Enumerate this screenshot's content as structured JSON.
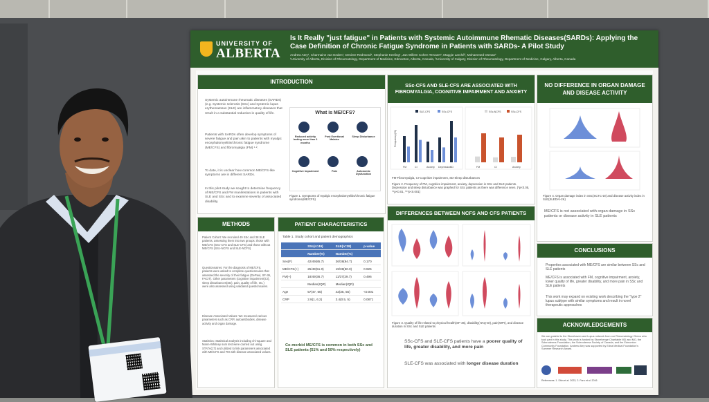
{
  "poster": {
    "university_line1": "UNIVERSITY OF",
    "university_line2": "ALBERTA",
    "title": "Is It Really \"just fatigue\" in Patients with Systemic Autoimmune Rhematic Diseases(SARDs): Applying the Case Definition of Chronic Fatigue Syndrome in Patients with SARDs- A Pilot Study",
    "authors": "Andrew Atey¹, Charmaine van Eeden¹, Desiree Redmond¹, Stephanie Keeling¹, Jan Willem Cohen Tervaert¹, Maggie Larché², Mohammed Osman¹",
    "affiliations": "¹University of Alberta, Division of Rheumatology, Department of Medicine, Edmonton, Alberta, Canada, ²University of Calgary, Division of Rheumatology, Department of Medicine, Calgary, Alberta, Canada",
    "intro": {
      "heading": "INTRODUCTION",
      "p1": "Systemic autoimmune rheumatic diseases (SARDs) (e.g. Systemic sclerosis (SSc) and systemic lupus erythematosus (SLE) are inflammatory diseases that result in a substantial reduction in quality of life.",
      "p2": "Patients with SARDs often develop symptoms of severe fatigue and pain akin to patients with myalgic encephalomyelitis/chronic fatigue syndrome (ME/CFS) and fibromyalgia (FM) ¹·².",
      "p3": "To date, it is unclear how common ME/CFS-like symptoms are in different SARDs.",
      "p4": "In this pilot study we sought to determine frequency of ME/CFS and FM manifestations in patients with SLE and SSc and to examine severity of associated disability.",
      "figure_title": "What is ME/CFS?",
      "figure_items": [
        "Reduced activity lasting more than 6 months",
        "Post Exertional Malaise",
        "Sleep Disturbance",
        "Cognitive Impairment",
        "Pain",
        "Autonomic Dysfunction"
      ],
      "caption": "Figure 1. Symptoms of myalgic encephalomyelitis/chronic fatigue syndrome(ME/CFS)"
    },
    "assoc": {
      "heading": "SSc-CFS AND SLE-CFS ARE ASSOCIATED WITH FIBROMYALGIA, COGNITIVE IMPAIRMENT AND ANXIETY",
      "legend_left": [
        "SLE-CFS",
        "SSc-CFS"
      ],
      "legend_right": [
        "SSc-NCFS",
        "SSc-CFS"
      ],
      "xlabels_left": [
        "FM",
        "CI",
        "Anxiety",
        "Depression",
        "SD"
      ],
      "xlabels_right": [
        "FM",
        "CI",
        "Anxiety"
      ],
      "ylabel": "Frequency(%)",
      "abbrev": "FM-Fibromyalgia, CI-Cognitive impairment, SD-Sleep disturbances",
      "caption": "Figure 2. Frequency of FM, cognitive impairment, anxiety, depression in SSc and SLE patients. Depression and sleep disturbance was graphed for SSc patients as there was difference seen. (*p<0.05, **p<0.01, ***p<0.001)"
    },
    "organ": {
      "heading": "NO DIFFERENCE IN ORGAN DAMAGE AND DISEASE ACTIVITY",
      "caption": "Figure 4. Organ damage index in SSc(SCTC-DI) and disease activity index in SLE(SLEDAI-2K)",
      "bullet": "ME/CFS is not associated with organ damage in SSc patients or disease activity in SLE patients"
    },
    "methods": {
      "heading": "METHODS",
      "cohort": "Patient Cohort: We recruited 49 SSc and 38 SLE patients, assessing them into two groups: those with ME/CFS (SSc-CFS and SLE-CFS) and those without ME/CFS (SSc-NCFS and SLE-NCFS)",
      "questionnaires": "Questionnaires: For the diagnosis of ME/CFS, patients were asked to complete questionnaires that assessed the severity of their fatigue (DePaul, SF-36, FACIT). Other parameters (cognitive impairment(CI), sleep disturbances(SD), pain, quality of life, etc.) were also assessed using validated questionnaires.",
      "disease": "Disease Associated Values: We measured various parameters such as CRP, autoantibodies, disease activity and organ damage.",
      "stats": "Statistics: Statistical analysis including chi-square and Mann-Whitney sum test were carried out using STATA(17) and utilized to link parameters associated with ME/CFS and FM with disease associated values."
    },
    "patients": {
      "heading": "PATIENT CHARACTERISTICS",
      "table_title": "Table 1. Study cohort and patient demographics",
      "columns": [
        "",
        "SSc(n=49)",
        "SLE(n=38)",
        "p-value"
      ],
      "subheader": [
        "",
        "Number(%)",
        "Number(%)",
        ""
      ],
      "rows": [
        [
          "Sex(F)",
          "42/49(85.7)",
          "36/38(94.7)",
          "0.170"
        ],
        [
          "ME/CFS(+)",
          "25/49(51.0)",
          "19/38(50.0)",
          "0.925"
        ],
        [
          "FM(+)",
          "18/49(36.7)",
          "11/37(29.7)",
          "0.496"
        ]
      ],
      "subheader2": [
        "",
        "Median(IQR)",
        "Median(IQR)",
        ""
      ],
      "rows2": [
        [
          "Age",
          "57(47, 65)",
          "42(35, 55)",
          "<0.001"
        ],
        [
          "CRP",
          "2.9(1, 6.2)",
          "3.4(0.5, 5)",
          "0.0871"
        ]
      ],
      "bullet": "Co-morbid ME/CFS is common in both SSc and SLE patients (51% and 50% respectively)"
    },
    "differences": {
      "heading": "DIFFERENCES BETWEEN NCFS AND CFS PATIENTS",
      "caption": "Figure 3. Quality of life related to physical health(SF-36), disability(HAQ-DI), pain(WPI), and disease duration in SSc and SLE patients",
      "bullet1_a": "SSc-CFS and SLE-CFS patients have a ",
      "bullet1_b": "poorer quality of life, greater disability, and more pain",
      "bullet2_a": "SLE-CFS was associated with ",
      "bullet2_b": "longer disease duration"
    },
    "conclusions": {
      "heading": "CONCLUSIONS",
      "b1": "Properties associated with ME/CFS are similar between SSc and SLE patients",
      "b2": "ME/CFS is associated with FM, cognitive impairment, anxiety, lower quality of life, greater disability, and more pain in SSc and SLE patients",
      "b3": "This work may expand on existing work describing the \"type 2\" lupus subtype with similar symptoms and result in novel therapeutic approaches"
    },
    "acknowledgements": {
      "heading": "ACKNOWLEDGEMENTS",
      "text": "We are grateful to the Stonehaven and Lupus network from our Rheumatology Clinics who took part in this study. This work is funded by Stonehenge Charitable MD and MO, the Scleroderma Foundation, the Scleroderma Society of Canada, and the Edmonton Community Foundation. Andrew Atey was supported by Edna Medical Foundation's Summer Research Award."
    },
    "references": "References: 1. Shin et al. 2022; 2. Faro et al. 2016"
  },
  "colors": {
    "poster_green": "#2f5e2c",
    "chart_blue": "#6d8fd8",
    "chart_red": "#d04a5e",
    "bar_dark": "#1f3048",
    "bar_orange": "#c9532d"
  }
}
